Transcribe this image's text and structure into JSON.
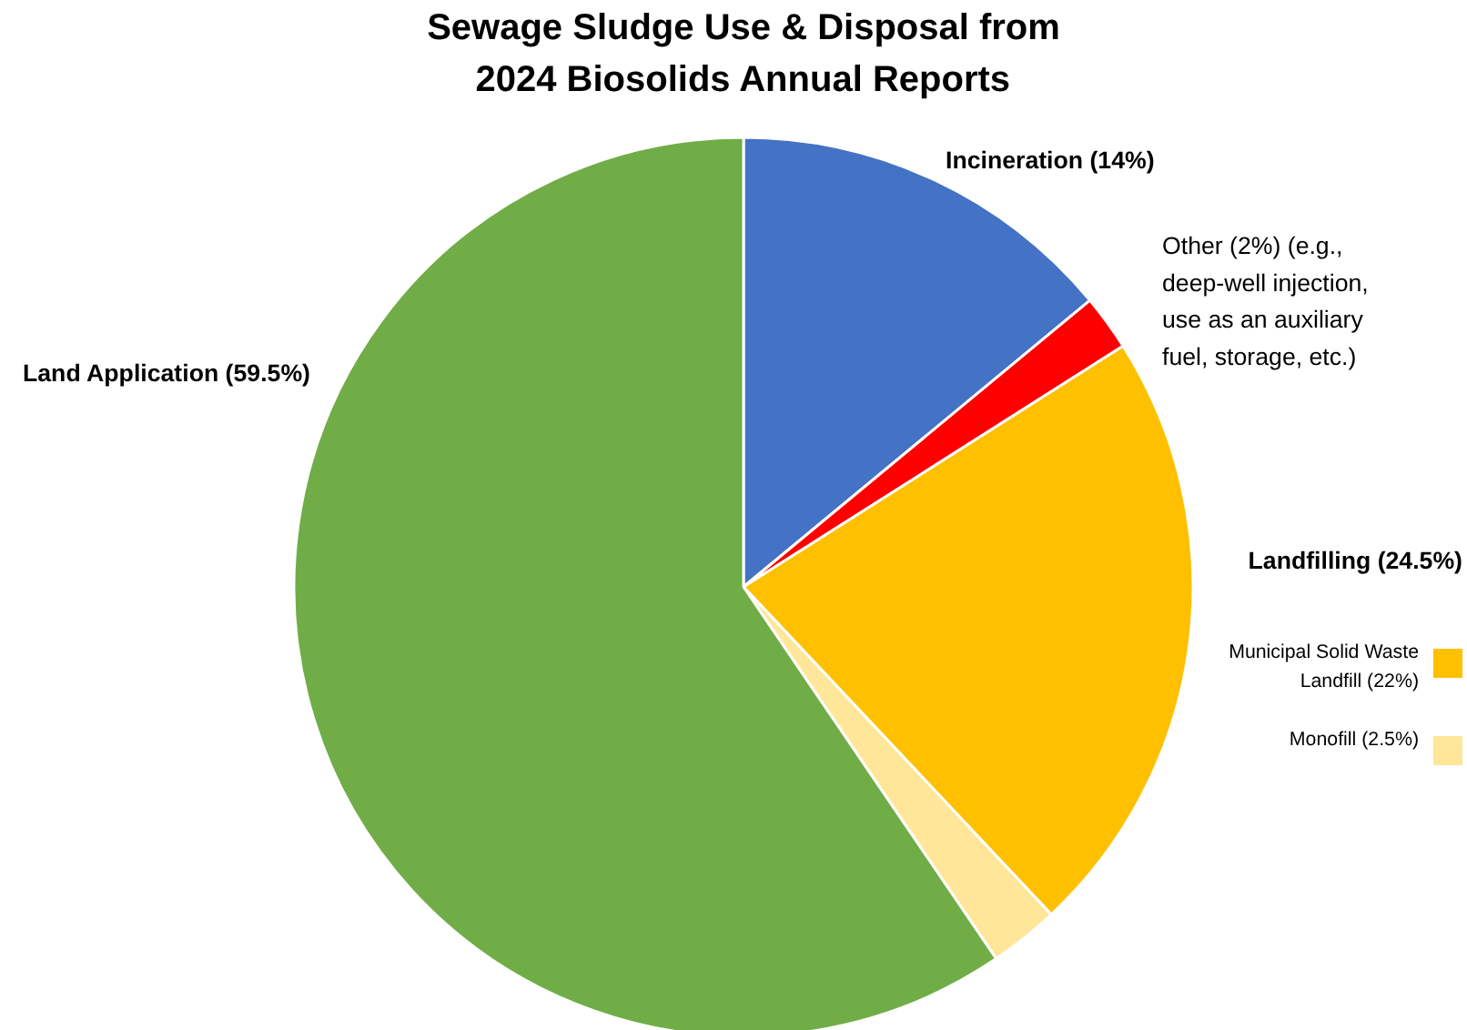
{
  "chart_data": {
    "type": "pie",
    "title": "Sewage Sludge Use & Disposal from 2024 Biosolids Annual Reports",
    "categories": [
      "Incineration (14%)",
      "Other (2%) (e.g., deep-well injection, use as an auxiliary fuel, storage, etc.)",
      "Municipal Solid Waste Landfill (22%)",
      "Monofill (2.5%)",
      "Land Application (59.5%)"
    ],
    "values": [
      14,
      2,
      22,
      2.5,
      59.5
    ],
    "colors": [
      "#4472c4",
      "#ff0000",
      "#ffc000",
      "#ffe699",
      "#70ad47"
    ],
    "annotations": [
      "Landfilling (24.5%)"
    ],
    "legend": "right"
  }
}
